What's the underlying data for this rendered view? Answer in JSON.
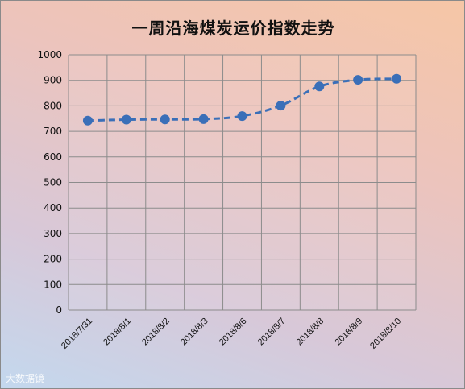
{
  "chart_data": {
    "type": "line",
    "title": "一周沿海煤炭运价指数走势",
    "categories": [
      "2018/7/31",
      "2018/8/1",
      "2018/8/2",
      "2018/8/3",
      "2018/8/6",
      "2018/8/7",
      "2018/8/8",
      "2018/8/9",
      "2018/8/10"
    ],
    "series": [
      {
        "values": [
          742,
          746,
          747,
          748,
          760,
          801,
          876,
          902,
          906
        ]
      }
    ],
    "ylim": [
      0,
      1000
    ],
    "yticks": [
      0,
      100,
      200,
      300,
      400,
      500,
      600,
      700,
      800,
      900,
      1000
    ],
    "grid": true,
    "line_style": "dashed",
    "marker": "circle",
    "color": "#3a6fb8"
  },
  "watermark": "大数据镜"
}
